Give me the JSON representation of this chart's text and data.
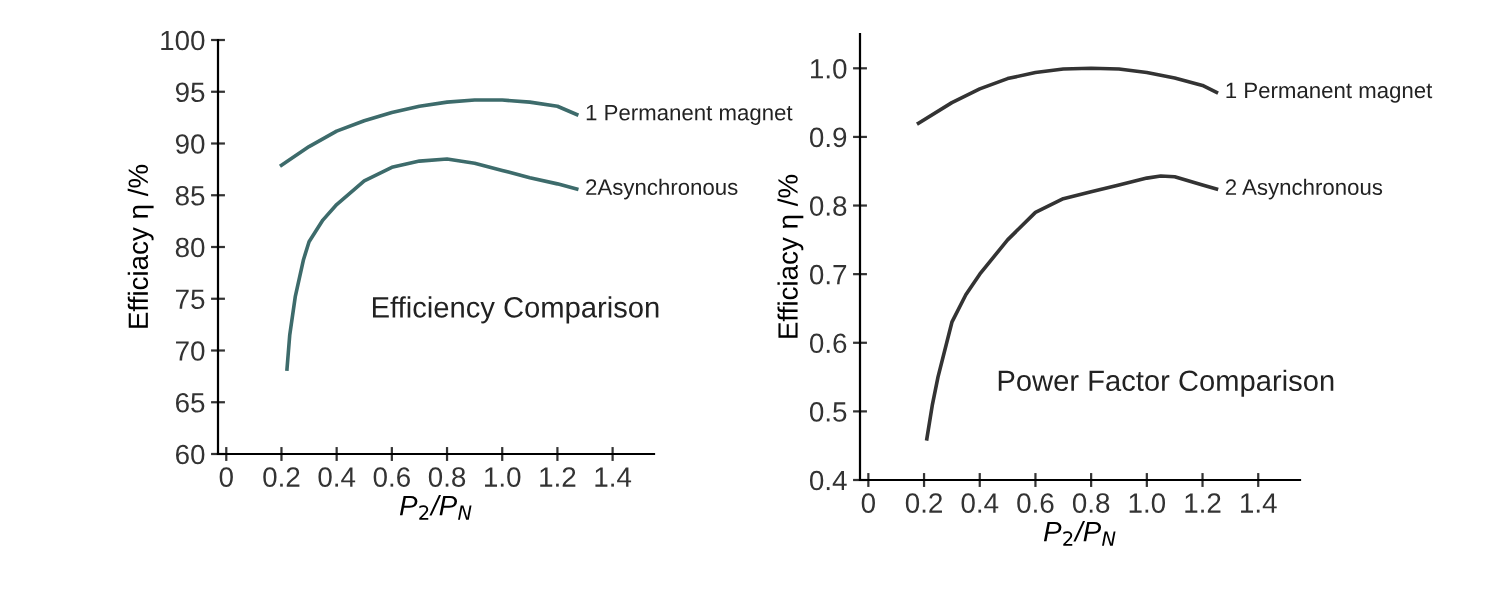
{
  "chart_data": [
    {
      "type": "line",
      "title": "Efficiency Comparison",
      "xlabel": "P$_{2}$/P$_{N}$",
      "ylabel": "Efficiacy η /%",
      "xlim": [
        -0.03,
        1.55
      ],
      "xticks": [
        0,
        0.2,
        0.4,
        0.6,
        0.8,
        {
          "value": 1.0,
          "label": "1.0"
        },
        1.2,
        1.4
      ],
      "ylim": [
        60,
        100
      ],
      "yticks": [
        60,
        65,
        70,
        75,
        80,
        85,
        90,
        95,
        100
      ],
      "grid": false,
      "legend": false,
      "marker": "none",
      "line_style": "solid",
      "series": [
        {
          "name": "1 Permanent magnet",
          "color": "#3d6b6b",
          "x": [
            0.2,
            0.3,
            0.4,
            0.5,
            0.6,
            0.7,
            0.8,
            0.9,
            1.0,
            1.1,
            1.2,
            1.27
          ],
          "values": [
            87.9,
            89.7,
            91.2,
            92.2,
            93.0,
            93.6,
            94.0,
            94.2,
            94.2,
            94.0,
            93.6,
            92.8
          ]
        },
        {
          "name": "2Asynchronous",
          "color": "#3d6b6b",
          "x": [
            0.22,
            0.23,
            0.25,
            0.28,
            0.3,
            0.35,
            0.4,
            0.5,
            0.6,
            0.7,
            0.8,
            0.9,
            1.0,
            1.1,
            1.2,
            1.27
          ],
          "values": [
            68.2,
            71.5,
            75.2,
            78.8,
            80.5,
            82.6,
            84.1,
            86.4,
            87.7,
            88.3,
            88.5,
            88.1,
            87.4,
            86.7,
            86.1,
            85.6
          ]
        }
      ]
    },
    {
      "type": "line",
      "title": "Power Factor Comparison",
      "xlabel": "P$_{2}$/P$_{N}$",
      "ylabel": "Efficiacy η /%",
      "xlim": [
        -0.03,
        1.55
      ],
      "xticks": [
        0,
        0.2,
        0.4,
        0.6,
        0.8,
        {
          "value": 1.0,
          "label": "1.0"
        },
        1.2,
        1.4
      ],
      "ylim": [
        0.4,
        1.05
      ],
      "yticks": [
        {
          "value": 0.4,
          "label": "0.4"
        },
        {
          "value": 0.5,
          "label": "0.5"
        },
        {
          "value": 0.6,
          "label": "0.6"
        },
        {
          "value": 0.7,
          "label": "0.7"
        },
        {
          "value": 0.8,
          "label": "0.8"
        },
        {
          "value": 0.9,
          "label": "0.9"
        },
        {
          "value": 1.0,
          "label": "1.0"
        }
      ],
      "grid": false,
      "legend": false,
      "marker": "none",
      "line_style": "solid",
      "series": [
        {
          "name": "1 Permanent magnet",
          "color": "#333333",
          "x": [
            0.18,
            0.3,
            0.4,
            0.5,
            0.6,
            0.7,
            0.8,
            0.9,
            1.0,
            1.1,
            1.2,
            1.25
          ],
          "values": [
            0.92,
            0.95,
            0.97,
            0.985,
            0.994,
            0.999,
            1.0,
            0.999,
            0.994,
            0.986,
            0.975,
            0.965
          ]
        },
        {
          "name": "2 Asynchronous",
          "color": "#333333",
          "x": [
            0.21,
            0.23,
            0.25,
            0.3,
            0.35,
            0.4,
            0.5,
            0.6,
            0.7,
            0.8,
            0.9,
            1.0,
            1.05,
            1.1,
            1.2,
            1.25
          ],
          "values": [
            0.46,
            0.51,
            0.55,
            0.63,
            0.67,
            0.7,
            0.75,
            0.79,
            0.81,
            0.82,
            0.83,
            0.84,
            0.843,
            0.842,
            0.83,
            0.824
          ]
        }
      ]
    }
  ]
}
